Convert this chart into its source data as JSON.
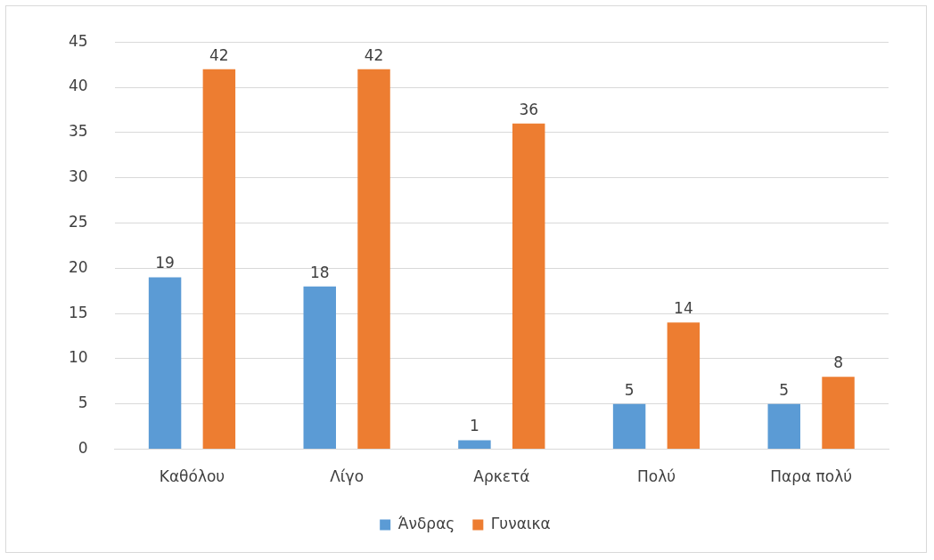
{
  "chart_data": {
    "type": "bar",
    "categories": [
      "Καθόλου",
      "Λίγο",
      "Αρκετά",
      "Πολύ",
      "Παρα πολύ"
    ],
    "series": [
      {
        "name": "Άνδρας",
        "color": "#5b9bd5",
        "values": [
          19,
          18,
          1,
          5,
          5
        ]
      },
      {
        "name": "Γυναικα",
        "color": "#ed7d31",
        "values": [
          42,
          42,
          36,
          14,
          8
        ]
      }
    ],
    "ylim": [
      0,
      45
    ],
    "yticks": [
      0,
      5,
      10,
      15,
      20,
      25,
      30,
      35,
      40,
      45
    ],
    "grid": "y",
    "legend": "bottom",
    "data_labels": true
  }
}
